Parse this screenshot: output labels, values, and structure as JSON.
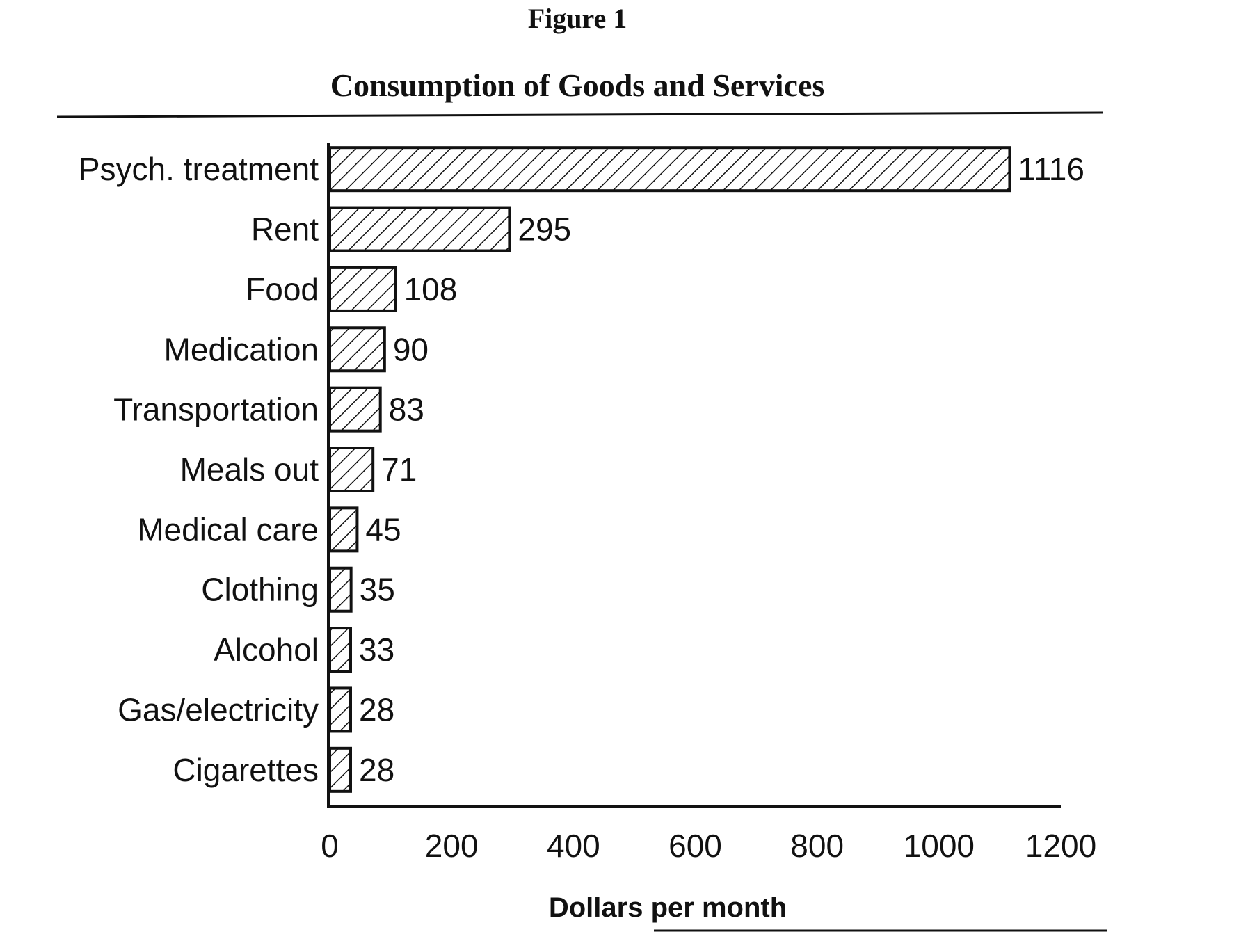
{
  "figure_label": "Figure 1",
  "chart_data": {
    "type": "bar",
    "orientation": "horizontal",
    "title": "Consumption of Goods and Services",
    "xlabel": "Dollars per month",
    "ylabel": "",
    "xlim": [
      0,
      1200
    ],
    "x_ticks": [
      0,
      200,
      400,
      600,
      800,
      1000,
      1200
    ],
    "x_tick_labels": [
      "0",
      "200",
      "400",
      "600",
      "800",
      "1000",
      "1200"
    ],
    "categories": [
      "Psych. treatment",
      "Rent",
      "Food",
      "Medication",
      "Transportation",
      "Meals out",
      "Medical care",
      "Clothing",
      "Alcohol",
      "Gas/electricity",
      "Cigarettes"
    ],
    "values": [
      1116,
      295,
      108,
      90,
      83,
      71,
      45,
      35,
      33,
      28,
      28
    ],
    "value_labels": [
      "1116",
      "295",
      "108",
      "90",
      "83",
      "71",
      "45",
      "35",
      "33",
      "28",
      "28"
    ],
    "grid": false,
    "legend": "none",
    "fill_pattern": "diagonal-hatch"
  }
}
